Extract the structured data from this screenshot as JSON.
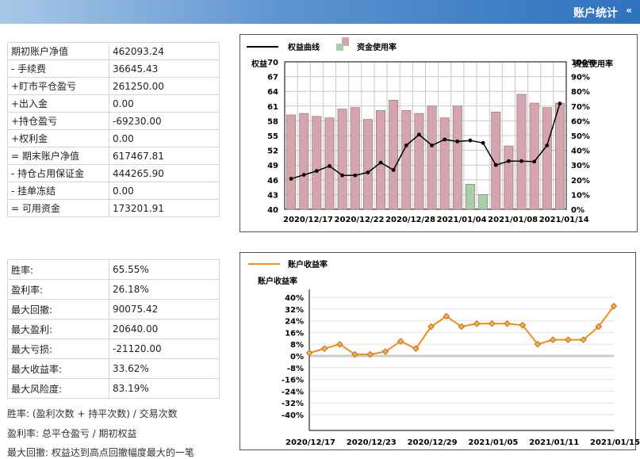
{
  "header": {
    "title": "账户统计",
    "toggle_icon": "«"
  },
  "account": [
    {
      "label": "期初账户净值",
      "value": "462093.24"
    },
    {
      "label": "- 手续费",
      "value": "36645.43"
    },
    {
      "label": "+盯市平仓盈亏",
      "value": "261250.00"
    },
    {
      "label": "+出入金",
      "value": "0.00"
    },
    {
      "label": "+持仓盈亏",
      "value": "-69230.00"
    },
    {
      "label": "+权利金",
      "value": "0.00"
    },
    {
      "label": "= 期末账户净值",
      "value": "617467.81"
    },
    {
      "label": "- 持仓占用保证金",
      "value": "444265.90"
    },
    {
      "label": "- 挂单冻结",
      "value": "0.00"
    },
    {
      "label": "= 可用资金",
      "value": "173201.91"
    }
  ],
  "performance": [
    {
      "label": "胜率:",
      "value": "65.55%"
    },
    {
      "label": "盈利率:",
      "value": "26.18%"
    },
    {
      "label": "最大回撤:",
      "value": "90075.42"
    },
    {
      "label": "最大盈利:",
      "value": "20640.00"
    },
    {
      "label": "最大亏损:",
      "value": "-21120.00"
    },
    {
      "label": "最大收益率:",
      "value": "33.62%"
    },
    {
      "label": "最大风险度:",
      "value": "83.19%"
    }
  ],
  "notes": [
    "胜率: (盈利次数 + 持平次数) / 交易次数",
    "盈利率: 总平仓盈亏 / 期初权益",
    "最大回撤: 权益达到高点回撤幅度最大的一笔"
  ],
  "chart_data": [
    {
      "type": "bar+line",
      "legend": [
        "权益曲线",
        "资金使用率"
      ],
      "ylabel_left": "权益",
      "ylabel_right": "资金使用率",
      "y_ticks_left": [
        "40",
        "43",
        "46",
        "49",
        "52",
        "55",
        "58",
        "61",
        "64",
        "67",
        "70"
      ],
      "y_ticks_right": [
        "0%",
        "10%",
        "20%",
        "30%",
        "40%",
        "50%",
        "60%",
        "70%",
        "80%",
        "90%",
        "100%"
      ],
      "ylim_left": [
        40,
        70
      ],
      "ylim_right": [
        0,
        100
      ],
      "x_tick_labels": [
        "2020/12/17",
        "2020/12/22",
        "2020/12/28",
        "2021/01/04",
        "2021/01/08",
        "2021/01/14"
      ],
      "series": [
        {
          "name": "权益曲线",
          "kind": "line",
          "values": [
            46.2,
            47.0,
            47.8,
            48.8,
            46.9,
            46.9,
            47.5,
            49.5,
            48.0,
            53.0,
            55.2,
            53.0,
            54.2,
            53.8,
            54.0,
            53.5,
            49.0,
            49.8,
            49.8,
            49.7,
            53.0,
            61.5
          ]
        },
        {
          "name": "资金使用率",
          "kind": "bar",
          "values": [
            64,
            65,
            63,
            62,
            68,
            69,
            61,
            67,
            74,
            67,
            65,
            70,
            62,
            70,
            17,
            10,
            66,
            43,
            78,
            72,
            69,
            72
          ],
          "color_flags": [
            "r",
            "r",
            "r",
            "r",
            "r",
            "r",
            "r",
            "r",
            "r",
            "r",
            "r",
            "r",
            "r",
            "r",
            "g",
            "g",
            "r",
            "r",
            "r",
            "r",
            "r",
            "r"
          ]
        }
      ],
      "colors": {
        "bar_red": "#d5a5ae",
        "bar_green": "#a9cfa9",
        "line": "#000000"
      }
    },
    {
      "type": "line",
      "legend": [
        "账户收益率"
      ],
      "ylabel": "账户收益率",
      "y_ticks": [
        "40%",
        "32%",
        "24%",
        "16%",
        "8%",
        "0%",
        "-8%",
        "-16%",
        "-24%",
        "-32%",
        "-40%"
      ],
      "ylim": [
        -40,
        40
      ],
      "x_tick_labels": [
        "2020/12/17",
        "2020/12/23",
        "2020/12/29",
        "2021/01/05",
        "2021/01/11",
        "2021/01/15"
      ],
      "series": [
        {
          "name": "账户收益率",
          "values": [
            2,
            5,
            8,
            1,
            1,
            3,
            10,
            5,
            20,
            27,
            20,
            22,
            22,
            22,
            21,
            8,
            11,
            11,
            11,
            20,
            34
          ]
        }
      ],
      "colors": {
        "line": "#f08c1e",
        "marker": "#c76a00",
        "zero": "#cccccc"
      }
    }
  ]
}
